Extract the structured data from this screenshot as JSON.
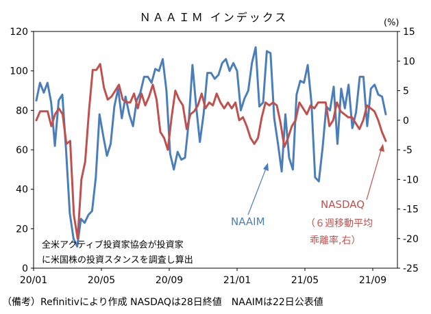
{
  "chart_data": {
    "type": "line",
    "title": "ＮＡＡＩＭ インデックス",
    "y2_unit": "(%)",
    "x_ticks": [
      "20/01",
      "20/05",
      "20/09",
      "21/01",
      "21/05",
      "21/09"
    ],
    "ylim_left": [
      0,
      120
    ],
    "yticks_left": [
      0,
      20,
      40,
      60,
      80,
      100,
      120
    ],
    "ylim_right": [
      -25,
      15
    ],
    "yticks_right": [
      -25,
      -20,
      -15,
      -10,
      -5,
      0,
      5,
      10,
      15
    ],
    "grid": false,
    "series": [
      {
        "name": "NAAIM",
        "axis": "left",
        "color": "#4a7ebb",
        "values": [
          85,
          94,
          89,
          94,
          84,
          62,
          85,
          88,
          60,
          28,
          15,
          11,
          25,
          23,
          27,
          29,
          46,
          78,
          67,
          57,
          63,
          82,
          91,
          76,
          87,
          78,
          72,
          85,
          89,
          97,
          97,
          94,
          101,
          100,
          106,
          90,
          58,
          50,
          59,
          55,
          56,
          74,
          103,
          82,
          64,
          78,
          99,
          99,
          96,
          98,
          104,
          106,
          100,
          104,
          100,
          80,
          86,
          90,
          104,
          112,
          82,
          84,
          110,
          109,
          76,
          63,
          49,
          78,
          56,
          50,
          88,
          95,
          94,
          103,
          84,
          46,
          44,
          61,
          82,
          80,
          92,
          63,
          91,
          81,
          93,
          71,
          79,
          97,
          97,
          72,
          91,
          93,
          88,
          87,
          78
        ]
      },
      {
        "name": "NASDAQ",
        "label_lines": [
          "NASDAQ",
          "（６週移動平均",
          "乖離率,右）"
        ],
        "axis": "right",
        "color": "#c0504d",
        "values": [
          0,
          1.5,
          1.5,
          1.5,
          -1,
          1,
          2,
          1,
          -4,
          -3.5,
          -16,
          -20,
          -10,
          -7,
          1.5,
          8.5,
          8.5,
          9.5,
          5.5,
          3.5,
          4,
          5,
          6,
          3.5,
          3,
          3,
          4.5,
          2,
          4.5,
          2.5,
          4,
          6,
          3.5,
          -2,
          -3,
          -5,
          0.5,
          5,
          3.5,
          2.5,
          -1.5,
          1,
          1.5,
          2.5,
          4.5,
          2,
          3,
          2.5,
          4.5,
          3,
          2,
          3,
          2,
          3,
          0,
          0.5,
          -1,
          -3,
          -4,
          -3,
          0.5,
          3,
          2.5,
          3,
          2.5,
          -0.5,
          -4.5,
          -3,
          -1,
          0,
          3,
          2,
          1,
          2.5,
          2,
          3,
          3,
          3,
          -1,
          0,
          3,
          1.5,
          1,
          0.5,
          0.5,
          -0.5,
          -1.5,
          0,
          2.5,
          2,
          1.5,
          0,
          -2,
          -3.5
        ]
      }
    ],
    "annotations": [
      "全米アクティブ投資家協会が投資家",
      "に米国株の投資スタンスを調査し算出"
    ],
    "footnote": "（備考）Refinitivにより作成 NASDAQは28日終値　NAAIMは22日公表値"
  }
}
